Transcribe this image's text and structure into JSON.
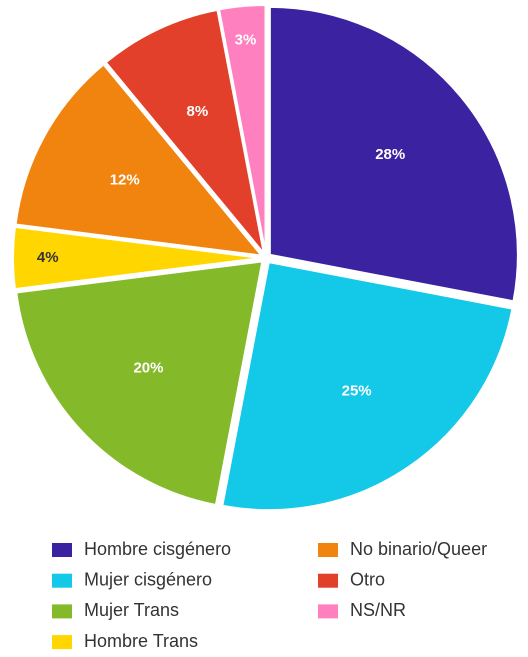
{
  "chart_data": {
    "type": "pie",
    "categories": [
      "Hombre cisgénero",
      "Mujer cisgénero",
      "Mujer Trans",
      "Hombre Trans",
      "No binario/Queer",
      "Otro",
      "NS/NR"
    ],
    "values": [
      28,
      25,
      20,
      4,
      12,
      8,
      3
    ],
    "value_labels": [
      "28%",
      "25%",
      "20%",
      "4%",
      "12%",
      "8%",
      "3%"
    ],
    "colors": [
      "#3a22a0",
      "#14c8e8",
      "#84b92a",
      "#ffd600",
      "#f0840f",
      "#e2402a",
      "#ff80bf"
    ],
    "legend": "bottom"
  }
}
